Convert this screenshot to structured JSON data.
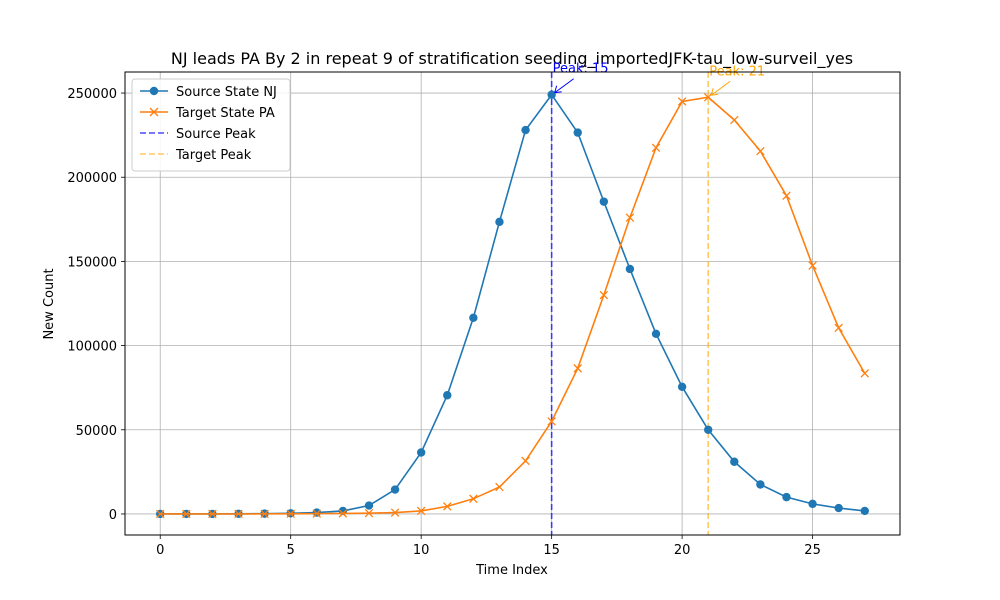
{
  "chart_data": {
    "type": "line",
    "title": "NJ leads PA By 2 in repeat 9 of stratification seeding_importedJFK-tau_low-surveil_yes",
    "xlabel": "Time Index",
    "ylabel": "New Count",
    "xlim": [
      -1.35,
      28.35
    ],
    "ylim": [
      -12500,
      262500
    ],
    "x_ticks": [
      0,
      5,
      10,
      15,
      20,
      25
    ],
    "y_ticks": [
      0,
      50000,
      100000,
      150000,
      200000,
      250000
    ],
    "grid": true,
    "legend_position": "upper-left",
    "x": [
      0,
      1,
      2,
      3,
      4,
      5,
      6,
      7,
      8,
      9,
      10,
      11,
      12,
      13,
      14,
      15,
      16,
      17,
      18,
      19,
      20,
      21,
      22,
      23,
      24,
      25,
      26,
      27
    ],
    "series": [
      {
        "name": "Source State NJ",
        "marker": "circle",
        "color": "#1f77b4",
        "values": [
          0,
          10,
          30,
          80,
          200,
          400,
          800,
          1800,
          5000,
          14500,
          36500,
          70500,
          116500,
          173500,
          228000,
          249000,
          226500,
          185500,
          145500,
          107000,
          75500,
          50000,
          31000,
          17500,
          10000,
          6000,
          3500,
          1800
        ]
      },
      {
        "name": "Target State PA",
        "marker": "x",
        "color": "#ff7f0e",
        "values": [
          0,
          0,
          10,
          20,
          50,
          100,
          200,
          300,
          500,
          800,
          1800,
          4500,
          9000,
          16000,
          31500,
          55000,
          86500,
          130000,
          176000,
          217500,
          245000,
          247500,
          234000,
          215500,
          189000,
          147500,
          110500,
          83500
        ]
      }
    ],
    "reference_lines": [
      {
        "name": "Source Peak",
        "x": 15,
        "color": "#0000ff",
        "style": "dashed"
      },
      {
        "name": "Target Peak",
        "x": 21,
        "color": "#ffa500",
        "style": "dashed"
      }
    ],
    "annotations": [
      {
        "text": "Peak: 15",
        "x": 15,
        "y": 249000,
        "color": "#0000ff"
      },
      {
        "text": "Peak: 21",
        "x": 21,
        "y": 247500,
        "color": "#ffa500"
      }
    ],
    "tick_labels": {
      "x": [
        "0",
        "5",
        "10",
        "15",
        "20",
        "25"
      ],
      "y": [
        "0",
        "50000",
        "100000",
        "150000",
        "200000",
        "250000"
      ]
    }
  }
}
